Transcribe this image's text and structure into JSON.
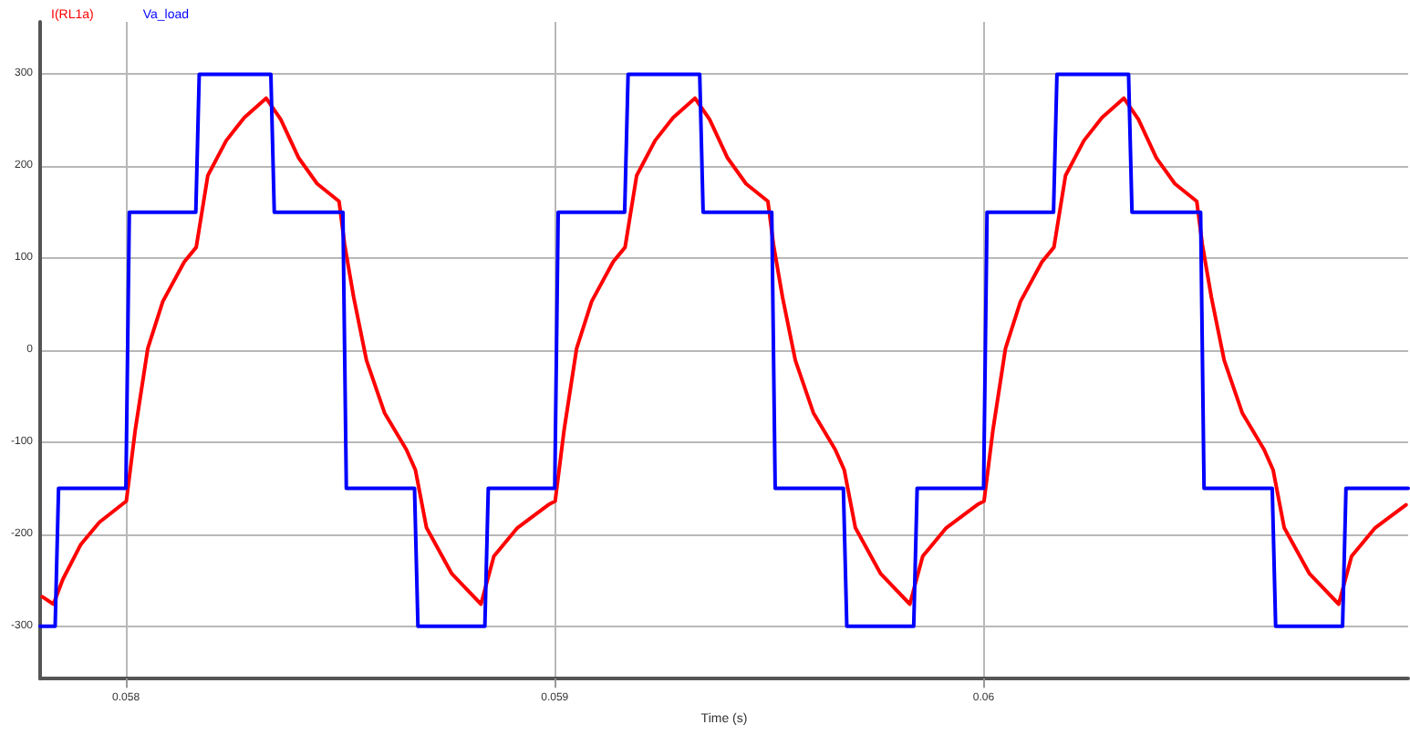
{
  "chart_data": {
    "type": "line",
    "xlabel": "Time (s)",
    "xlim": [
      0.0578,
      0.06099
    ],
    "xticks": [
      0.058,
      0.059,
      0.06
    ],
    "ylim": [
      -357,
      357
    ],
    "yticks": [
      -300,
      -200,
      -100,
      0,
      100,
      200,
      300
    ],
    "grid": true,
    "legend": "top left",
    "marker": "none",
    "line_style": "solid",
    "series": [
      {
        "name": "I(RL1a)",
        "color": "#ff0000",
        "x": [
          0.057805,
          0.057831,
          0.057853,
          0.057895,
          0.057938,
          0.058001,
          0.058022,
          0.058051,
          0.058086,
          0.058136,
          0.058164,
          0.058191,
          0.058234,
          0.058276,
          0.058327,
          0.058361,
          0.058403,
          0.058446,
          0.058497,
          0.05851,
          0.058531,
          0.058561,
          0.058603,
          0.058654,
          0.058675,
          0.058701,
          0.05876,
          0.058828,
          0.058858,
          0.058913,
          0.058985,
          0.059001,
          0.059022,
          0.059051,
          0.059086,
          0.059136,
          0.059164,
          0.059191,
          0.059234,
          0.059276,
          0.059327,
          0.059361,
          0.059403,
          0.059446,
          0.059497,
          0.05951,
          0.059531,
          0.059561,
          0.059603,
          0.059654,
          0.059675,
          0.059701,
          0.05976,
          0.059828,
          0.059858,
          0.059913,
          0.059985,
          0.060001,
          0.060022,
          0.060051,
          0.060086,
          0.060136,
          0.060164,
          0.060191,
          0.060234,
          0.060276,
          0.060327,
          0.060361,
          0.060403,
          0.060446,
          0.060497,
          0.06051,
          0.060531,
          0.060561,
          0.060603,
          0.060654,
          0.060675,
          0.060701,
          0.06076,
          0.060828,
          0.060858,
          0.060913,
          0.060985
        ],
        "values": [
          -268,
          -276,
          -249,
          -211,
          -187,
          -164,
          -86,
          2,
          53,
          96,
          112,
          190,
          228,
          253,
          274,
          251,
          209,
          181,
          162,
          115,
          58,
          -11,
          -68,
          -108,
          -130,
          -193,
          -243,
          -276,
          -224,
          -193,
          -168,
          -164,
          -86,
          2,
          53,
          96,
          112,
          190,
          228,
          253,
          274,
          251,
          209,
          181,
          162,
          115,
          58,
          -11,
          -68,
          -108,
          -130,
          -193,
          -243,
          -276,
          -224,
          -193,
          -168,
          -164,
          -86,
          2,
          53,
          96,
          112,
          190,
          228,
          253,
          274,
          251,
          209,
          181,
          162,
          115,
          58,
          -11,
          -68,
          -108,
          -130,
          -193,
          -243,
          -276,
          -224,
          -193,
          -168
        ]
      },
      {
        "name": "Va_load",
        "color": "#0000ff",
        "x": [
          0.0578,
          0.057835,
          0.057843,
          0.058,
          0.058008,
          0.058163,
          0.058171,
          0.058338,
          0.058346,
          0.058506,
          0.058514,
          0.058673,
          0.058681,
          0.058837,
          0.058845,
          0.059,
          0.059008,
          0.059163,
          0.059171,
          0.059338,
          0.059346,
          0.059506,
          0.059514,
          0.059673,
          0.059681,
          0.059837,
          0.059845,
          0.06,
          0.060008,
          0.060163,
          0.060171,
          0.060338,
          0.060346,
          0.060506,
          0.060514,
          0.060673,
          0.060681,
          0.060837,
          0.060845,
          0.06099
        ],
        "values": [
          -300,
          -300,
          -150,
          -150,
          150,
          150,
          300,
          300,
          150,
          150,
          -150,
          -150,
          -300,
          -300,
          -150,
          -150,
          150,
          150,
          300,
          300,
          150,
          150,
          -150,
          -150,
          -300,
          -300,
          -150,
          -150,
          150,
          150,
          300,
          300,
          150,
          150,
          -150,
          -150,
          -300,
          -300,
          -150,
          -150
        ]
      }
    ]
  }
}
